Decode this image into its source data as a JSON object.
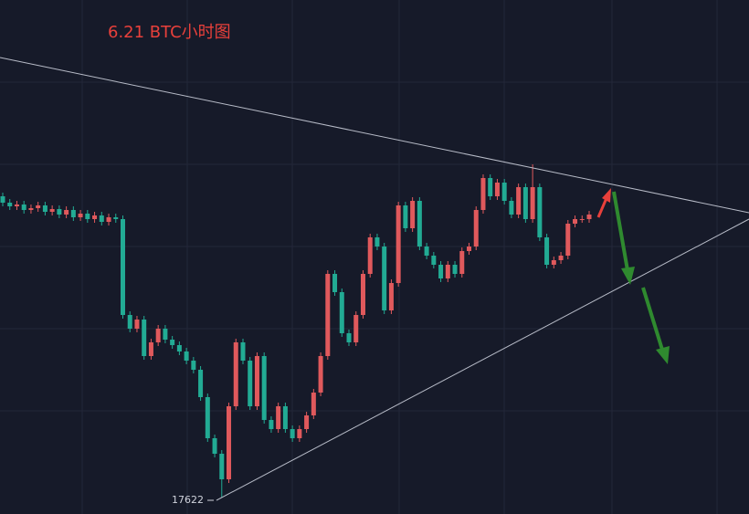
{
  "chart_data": {
    "type": "candlestick",
    "title": "6.21 BTC小时图",
    "up_color": "#e0595c",
    "down_color": "#22ab94",
    "ylim": [
      17440,
      23070
    ],
    "open": [
      20920,
      20850,
      20810,
      20830,
      20770,
      20790,
      20820,
      20750,
      20780,
      20720,
      20770,
      20690,
      20730,
      20670,
      20710,
      20640,
      20690,
      20670,
      19620,
      19470,
      19570,
      19170,
      19320,
      19470,
      19350,
      19290,
      19220,
      19120,
      19020,
      18720,
      18270,
      18100,
      17820,
      18620,
      19320,
      19120,
      18620,
      19170,
      18470,
      18370,
      18620,
      18370,
      18270,
      18370,
      18520,
      18770,
      19170,
      20070,
      19870,
      19420,
      19320,
      19620,
      20070,
      20470,
      20370,
      19670,
      19970,
      20820,
      20570,
      20870,
      20370,
      20270,
      20170,
      20020,
      20170,
      20070,
      20320,
      20370,
      20770,
      21120,
      20920,
      21070,
      20870,
      20720,
      21020,
      20670,
      21020,
      20470,
      20170,
      20220,
      20270,
      20620,
      20670,
      20670
    ],
    "high": [
      20960,
      20890,
      20870,
      20870,
      20830,
      20860,
      20860,
      20820,
      20820,
      20810,
      20810,
      20770,
      20770,
      20750,
      20750,
      20730,
      20730,
      20710,
      19660,
      19610,
      19610,
      19360,
      19510,
      19510,
      19390,
      19330,
      19260,
      19160,
      19060,
      18760,
      18310,
      18140,
      18660,
      19360,
      19360,
      19160,
      19210,
      19210,
      18510,
      18660,
      18660,
      18410,
      18410,
      18560,
      18810,
      19210,
      20110,
      20110,
      19910,
      19460,
      19660,
      20110,
      20510,
      20510,
      20410,
      20010,
      20860,
      20860,
      20910,
      20910,
      20410,
      20310,
      20210,
      20210,
      20210,
      20360,
      20410,
      20810,
      21160,
      21160,
      21110,
      21110,
      20910,
      21060,
      21060,
      21270,
      21060,
      20510,
      20260,
      20310,
      20660,
      20710,
      20710,
      20760
    ],
    "low": [
      20810,
      20770,
      20770,
      20730,
      20730,
      20750,
      20710,
      20710,
      20680,
      20680,
      20650,
      20650,
      20630,
      20630,
      20600,
      20600,
      20630,
      19580,
      19430,
      19430,
      19130,
      19130,
      19280,
      19310,
      19250,
      19180,
      19080,
      18980,
      18680,
      18230,
      18060,
      17622,
      17780,
      18580,
      19080,
      18580,
      18580,
      18430,
      18330,
      18330,
      18330,
      18230,
      18230,
      18330,
      18480,
      18730,
      19130,
      19830,
      19380,
      19280,
      19280,
      19580,
      20030,
      20330,
      19630,
      19630,
      19930,
      20530,
      20530,
      20330,
      20230,
      20130,
      19980,
      19980,
      20030,
      20030,
      20280,
      20330,
      20730,
      20880,
      20880,
      20830,
      20680,
      20680,
      20630,
      20630,
      20430,
      20130,
      20130,
      20180,
      20230,
      20580,
      20630,
      20630
    ],
    "close": [
      20850,
      20810,
      20830,
      20770,
      20790,
      20820,
      20750,
      20780,
      20720,
      20770,
      20690,
      20730,
      20670,
      20710,
      20640,
      20690,
      20670,
      19620,
      19470,
      19570,
      19170,
      19320,
      19470,
      19350,
      19290,
      19220,
      19120,
      19020,
      18720,
      18270,
      18100,
      17820,
      18620,
      19320,
      19120,
      18620,
      19170,
      18470,
      18370,
      18620,
      18370,
      18270,
      18370,
      18520,
      18770,
      19170,
      20070,
      19870,
      19420,
      19320,
      19620,
      20070,
      20470,
      20370,
      19670,
      19970,
      20820,
      20570,
      20870,
      20370,
      20270,
      20170,
      20020,
      20170,
      20070,
      20320,
      20370,
      20770,
      21120,
      20920,
      21070,
      20870,
      20720,
      21020,
      20670,
      21020,
      20470,
      20170,
      20220,
      20270,
      20620,
      20670,
      20670,
      20720
    ]
  }
}
